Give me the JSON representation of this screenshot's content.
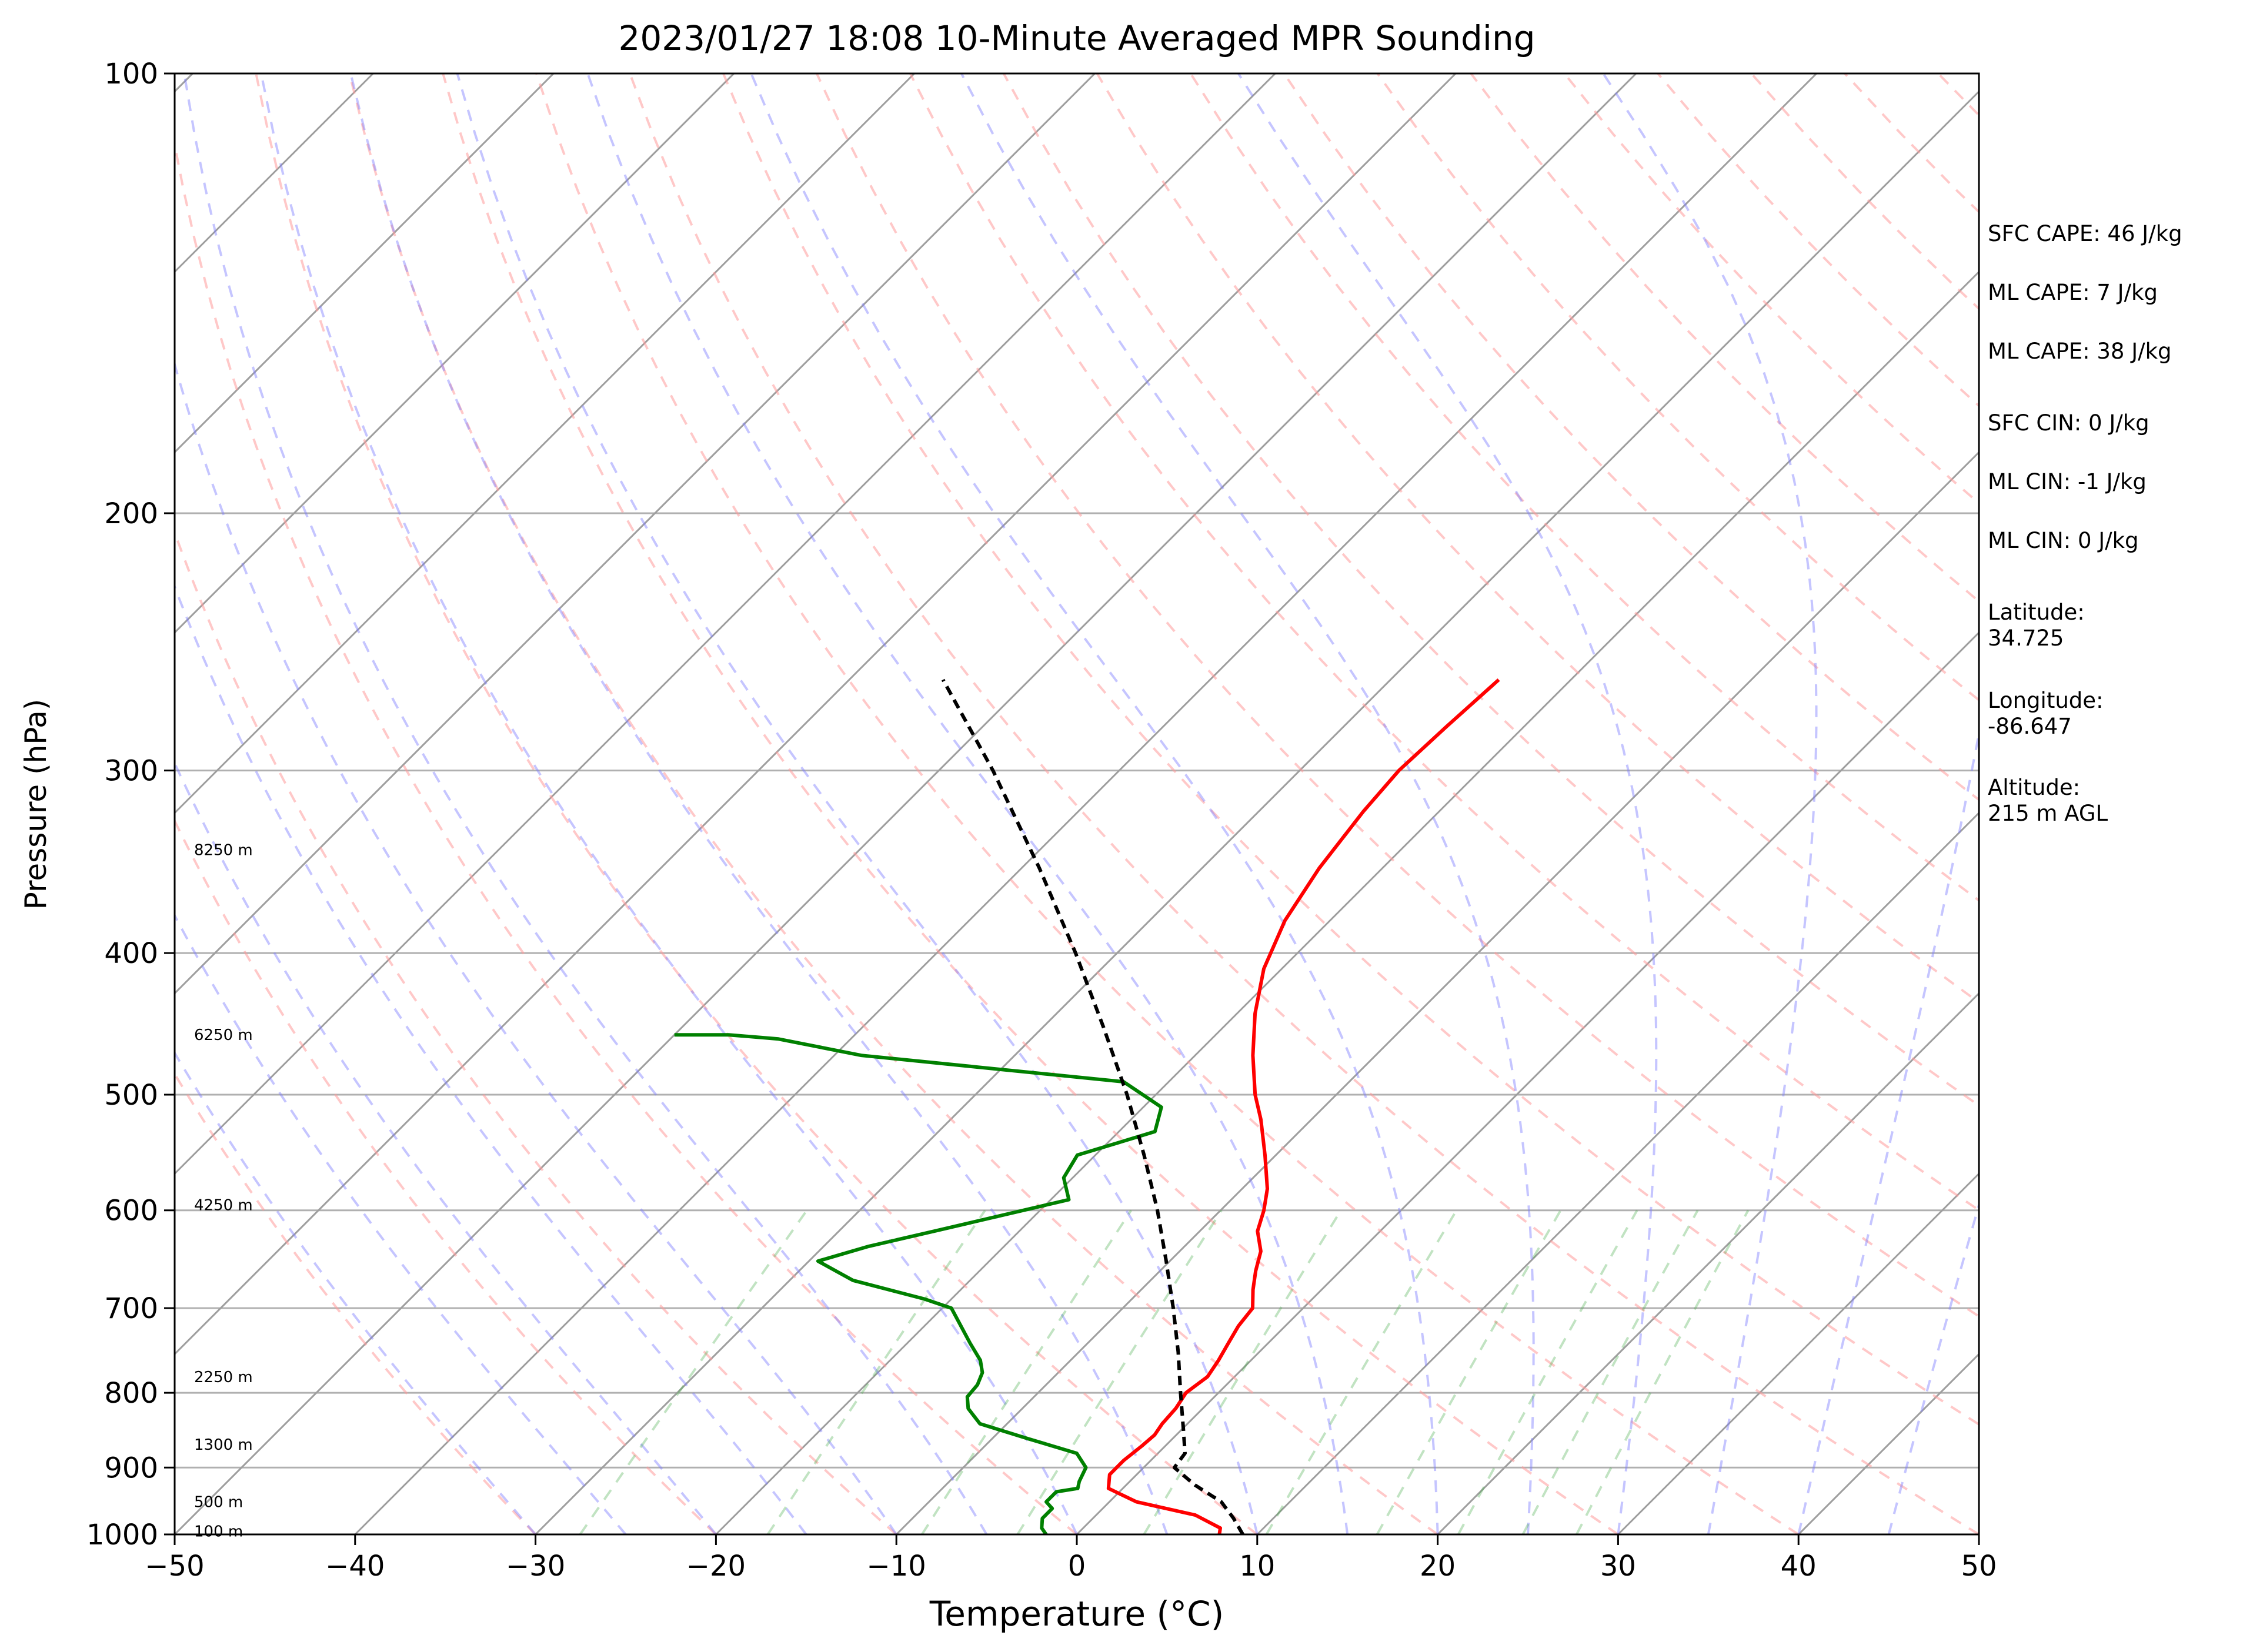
{
  "chart_data": {
    "type": "line",
    "title": "2023/01/27 18:08 10-Minute Averaged MPR Sounding",
    "xlabel": "Temperature (°C)",
    "ylabel": "Pressure (hPa)",
    "xlim": [
      -50,
      50
    ],
    "ylim": [
      1000,
      100
    ],
    "y_scale": "log",
    "skew": "skew-T log-p",
    "grid": true,
    "x_ticks": [
      "−50",
      "−40",
      "−30",
      "−20",
      "−10",
      "0",
      "10",
      "20",
      "30",
      "40",
      "50"
    ],
    "y_ticks": [
      "100",
      "200",
      "300",
      "400",
      "500",
      "600",
      "700",
      "800",
      "900",
      "1000"
    ],
    "height_labels": [
      {
        "text": "100 m",
        "p": 995
      },
      {
        "text": "500 m",
        "p": 950
      },
      {
        "text": "1300 m",
        "p": 868
      },
      {
        "text": "2250 m",
        "p": 780
      },
      {
        "text": "4250 m",
        "p": 595
      },
      {
        "text": "6250 m",
        "p": 455
      },
      {
        "text": "8250 m",
        "p": 340
      }
    ],
    "series": [
      {
        "role": "temperature",
        "color": "#ff0000",
        "style": "solid",
        "points": [
          [
            1000,
            7.9
          ],
          [
            990,
            7.6
          ],
          [
            970,
            5.5
          ],
          [
            950,
            1.5
          ],
          [
            930,
            -0.8
          ],
          [
            910,
            -1.5
          ],
          [
            890,
            -1.5
          ],
          [
            870,
            -1.3
          ],
          [
            855,
            -1.2
          ],
          [
            840,
            -1.4
          ],
          [
            820,
            -1.5
          ],
          [
            800,
            -1.8
          ],
          [
            780,
            -1.5
          ],
          [
            760,
            -1.8
          ],
          [
            740,
            -2.2
          ],
          [
            720,
            -2.6
          ],
          [
            700,
            -2.8
          ],
          [
            680,
            -3.8
          ],
          [
            660,
            -4.7
          ],
          [
            640,
            -5.5
          ],
          [
            620,
            -6.8
          ],
          [
            600,
            -7.6
          ],
          [
            580,
            -8.6
          ],
          [
            550,
            -10.6
          ],
          [
            520,
            -12.8
          ],
          [
            500,
            -14.5
          ],
          [
            470,
            -16.8
          ],
          [
            440,
            -19.0
          ],
          [
            410,
            -21.0
          ],
          [
            380,
            -22.5
          ],
          [
            350,
            -23.5
          ],
          [
            320,
            -24.2
          ],
          [
            300,
            -24.5
          ],
          [
            280,
            -24.3
          ],
          [
            260,
            -24.0
          ]
        ]
      },
      {
        "role": "dewpoint",
        "color": "#008000",
        "style": "solid",
        "points": [
          [
            1000,
            -1.7
          ],
          [
            990,
            -2.3
          ],
          [
            975,
            -2.8
          ],
          [
            960,
            -2.8
          ],
          [
            950,
            -3.5
          ],
          [
            935,
            -3.5
          ],
          [
            930,
            -2.5
          ],
          [
            920,
            -2.8
          ],
          [
            900,
            -3.2
          ],
          [
            880,
            -4.5
          ],
          [
            860,
            -8.0
          ],
          [
            840,
            -11.5
          ],
          [
            820,
            -13.0
          ],
          [
            805,
            -13.7
          ],
          [
            790,
            -13.8
          ],
          [
            775,
            -14.2
          ],
          [
            760,
            -15.0
          ],
          [
            740,
            -16.5
          ],
          [
            700,
            -19.5
          ],
          [
            690,
            -21.5
          ],
          [
            670,
            -26.5
          ],
          [
            650,
            -29.5
          ],
          [
            635,
            -27.5
          ],
          [
            620,
            -24.7
          ],
          [
            590,
            -19.0
          ],
          [
            570,
            -20.5
          ],
          [
            550,
            -21.0
          ],
          [
            530,
            -18.0
          ],
          [
            510,
            -19.0
          ],
          [
            490,
            -22.5
          ],
          [
            470,
            -38.5
          ],
          [
            458,
            -44.0
          ],
          [
            455,
            -47.0
          ],
          [
            455,
            -50.0
          ]
        ]
      },
      {
        "role": "parcel",
        "color": "#000000",
        "style": "dashed",
        "points": [
          [
            1000,
            9.2
          ],
          [
            975,
            7.8
          ],
          [
            950,
            6.2
          ],
          [
            925,
            3.8
          ],
          [
            900,
            1.7
          ],
          [
            880,
            1.5
          ],
          [
            850,
            0.2
          ],
          [
            800,
            -2.1
          ],
          [
            750,
            -4.5
          ],
          [
            700,
            -7.2
          ],
          [
            650,
            -10.2
          ],
          [
            600,
            -13.5
          ],
          [
            550,
            -17.3
          ],
          [
            500,
            -21.6
          ],
          [
            450,
            -26.6
          ],
          [
            400,
            -32.3
          ],
          [
            350,
            -39.0
          ],
          [
            300,
            -47.0
          ],
          [
            260,
            -54.8
          ]
        ]
      }
    ]
  },
  "stats": {
    "sfc_cape": "SFC CAPE: 46 J/kg",
    "ml_cape_1": "ML CAPE: 7 J/kg",
    "ml_cape_2": "ML CAPE: 38 J/kg",
    "sfc_cin": "SFC CIN: 0 J/kg",
    "ml_cin_1": "ML CIN: -1 J/kg",
    "ml_cin_2": "ML CIN: 0 J/kg",
    "latitude_label": "Latitude:",
    "latitude_value": "34.725",
    "longitude_label": "Longitude:",
    "longitude_value": "-86.647",
    "altitude_label": "Altitude:",
    "altitude_value": "215 m AGL"
  }
}
